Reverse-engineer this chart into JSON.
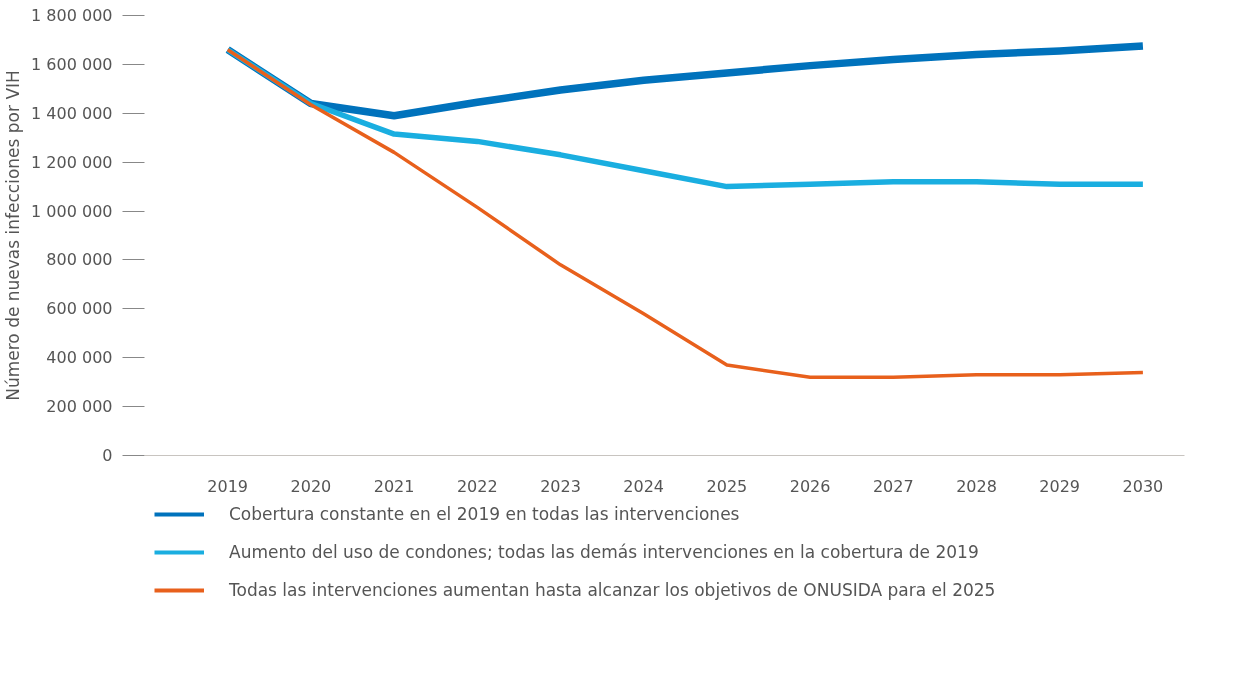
{
  "chart_data": {
    "type": "line",
    "ylabel": "Número de nuevas infecciones por VIH",
    "categories": [
      "2019",
      "2020",
      "2021",
      "2022",
      "2023",
      "2024",
      "2025",
      "2026",
      "2027",
      "2028",
      "2029",
      "2030"
    ],
    "series": [
      {
        "name": "Cobertura constante en el 2019 en todas las intervenciones",
        "color": "#0072bc",
        "values": [
          1660000,
          1440000,
          1390000,
          1445000,
          1495000,
          1535000,
          1565000,
          1595000,
          1620000,
          1640000,
          1655000,
          1675000
        ]
      },
      {
        "name": "Aumento del uso de condones; todas las demás intervenciones en la cobertura de 2019",
        "color": "#1aaee0",
        "values": [
          1660000,
          1440000,
          1315000,
          1285000,
          1230000,
          1165000,
          1100000,
          1110000,
          1120000,
          1120000,
          1110000,
          1110000
        ]
      },
      {
        "name": "Todas las intervenciones aumentan hasta alcanzar los objetivos de ONUSIDA para el 2025",
        "color": "#e8601c",
        "values": [
          1660000,
          1435000,
          1240000,
          1015000,
          780000,
          580000,
          370000,
          320000,
          320000,
          330000,
          330000,
          340000
        ]
      }
    ],
    "ylim": [
      0,
      1800000
    ],
    "yticks": [
      {
        "value": 0,
        "label": "0"
      },
      {
        "value": 200000,
        "label": "200 000"
      },
      {
        "value": 400000,
        "label": "400 000"
      },
      {
        "value": 600000,
        "label": "600 000"
      },
      {
        "value": 800000,
        "label": "800 000"
      },
      {
        "value": 1000000,
        "label": "1 000 000"
      },
      {
        "value": 1200000,
        "label": "1 200 000"
      },
      {
        "value": 1400000,
        "label": "1 400 000"
      },
      {
        "value": 1600000,
        "label": "1 600 000"
      },
      {
        "value": 1800000,
        "label": "1 800 000"
      }
    ],
    "grid": false,
    "legend": "bottom",
    "marker": "none",
    "line_style": "solid"
  }
}
